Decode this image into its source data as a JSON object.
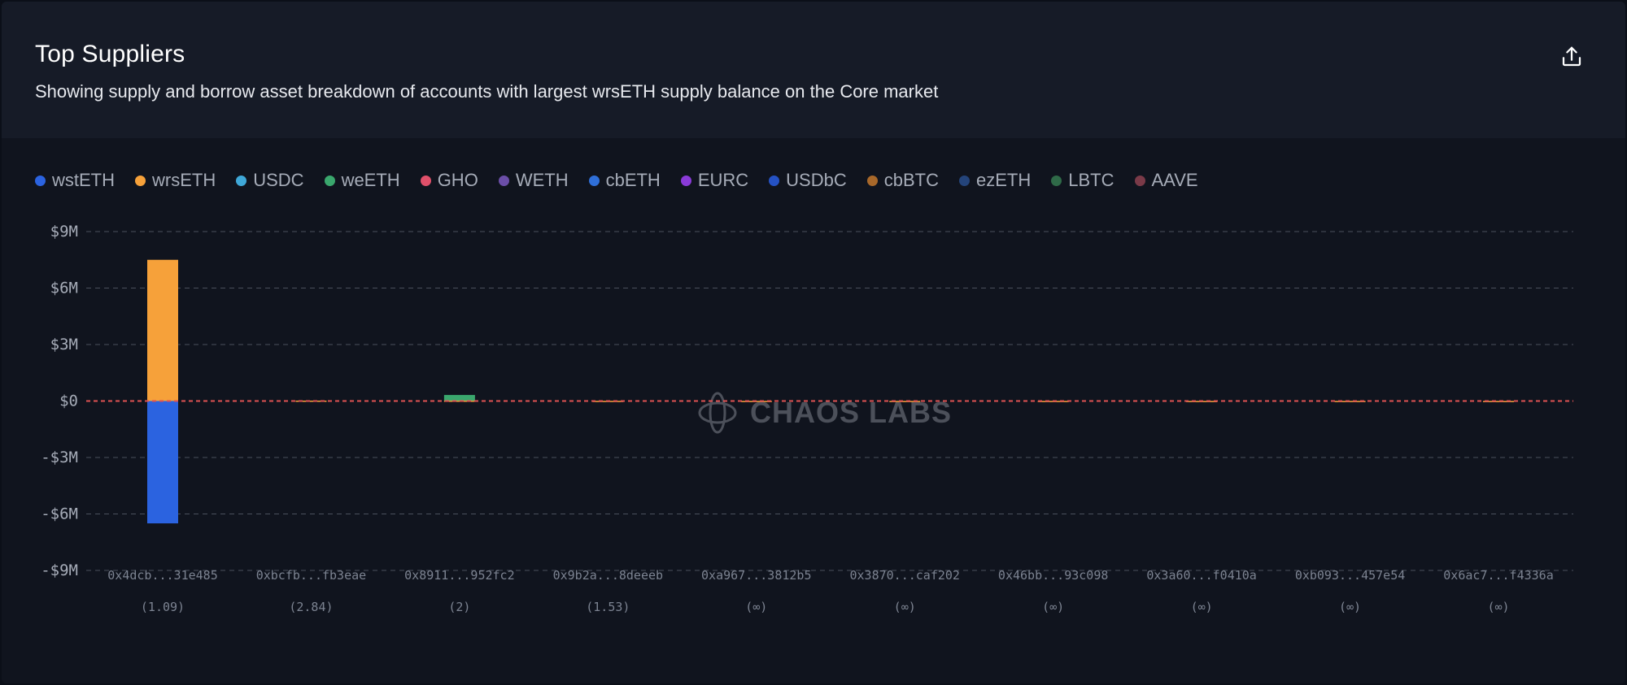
{
  "header": {
    "title": "Top Suppliers",
    "subtitle": "Showing supply and borrow asset breakdown of accounts with largest wrsETH supply balance on the Core market",
    "export_icon": "share-upload-icon"
  },
  "watermark": {
    "text": "CHAOS LABS",
    "icon": "chaos-labs-logo-icon"
  },
  "colors": {
    "background": "#10141e",
    "header_background": "#161b27",
    "zero_line": "#e05252",
    "grid": "#4a505c"
  },
  "chart_data": {
    "type": "bar",
    "stacked": true,
    "title": "Top Suppliers",
    "grid": true,
    "legend_position": "top-left",
    "ylim": [
      -9000000,
      9000000
    ],
    "yticks": [
      9000000,
      6000000,
      3000000,
      0,
      -3000000,
      -6000000,
      -9000000
    ],
    "ytick_labels": [
      "$9M",
      "$6M",
      "$3M",
      "$0",
      "-$3M",
      "-$6M",
      "-$9M"
    ],
    "categories": [
      "0x4dcb...31e485",
      "0xbcfb...fb3eae",
      "0x8911...952fc2",
      "0x9b2a...8deeeb",
      "0xa967...3812b5",
      "0x3870...caf202",
      "0x46bb...93c098",
      "0x3a60...f0410a",
      "0xb093...457e54",
      "0x6ac7...f4336a"
    ],
    "category_sublabels": [
      "(1.09)",
      "(2.84)",
      "(2)",
      "(1.53)",
      "(∞)",
      "(∞)",
      "(∞)",
      "(∞)",
      "(∞)",
      "(∞)"
    ],
    "series": [
      {
        "name": "wstETH",
        "color": "#2b63e0",
        "values": [
          -6500000,
          0,
          0,
          0,
          0,
          0,
          0,
          0,
          0,
          0
        ]
      },
      {
        "name": "wrsETH",
        "color": "#f6a13a",
        "values": [
          7500000,
          20000,
          20000,
          8000,
          6000,
          5000,
          5000,
          4000,
          4000,
          3000
        ]
      },
      {
        "name": "USDC",
        "color": "#3fa8d8",
        "values": [
          0,
          0,
          0,
          0,
          0,
          0,
          0,
          0,
          0,
          0
        ]
      },
      {
        "name": "weETH",
        "color": "#3aa76d",
        "values": [
          0,
          0,
          300000,
          0,
          0,
          0,
          0,
          0,
          0,
          0
        ]
      },
      {
        "name": "GHO",
        "color": "#e0506a",
        "values": [
          0,
          0,
          0,
          0,
          0,
          0,
          0,
          0,
          0,
          0
        ]
      },
      {
        "name": "WETH",
        "color": "#6b4ea8",
        "values": [
          0,
          0,
          0,
          0,
          0,
          0,
          0,
          0,
          0,
          0
        ]
      },
      {
        "name": "cbETH",
        "color": "#2f6fd8",
        "values": [
          0,
          0,
          0,
          0,
          0,
          0,
          0,
          0,
          0,
          0
        ]
      },
      {
        "name": "EURC",
        "color": "#8a3ad8",
        "values": [
          0,
          0,
          0,
          0,
          0,
          0,
          0,
          0,
          0,
          0
        ]
      },
      {
        "name": "USDbC",
        "color": "#2552c4",
        "values": [
          0,
          0,
          0,
          0,
          0,
          0,
          0,
          0,
          0,
          0
        ]
      },
      {
        "name": "cbBTC",
        "color": "#a8682a",
        "values": [
          0,
          0,
          0,
          0,
          0,
          0,
          0,
          0,
          0,
          0
        ]
      },
      {
        "name": "ezETH",
        "color": "#24447a",
        "values": [
          0,
          0,
          0,
          0,
          0,
          0,
          0,
          0,
          0,
          0
        ]
      },
      {
        "name": "LBTC",
        "color": "#2f6a48",
        "values": [
          0,
          0,
          0,
          0,
          0,
          0,
          0,
          0,
          0,
          0
        ]
      },
      {
        "name": "AAVE",
        "color": "#7a3a48",
        "values": [
          0,
          0,
          0,
          0,
          0,
          0,
          0,
          0,
          0,
          0
        ]
      }
    ]
  }
}
